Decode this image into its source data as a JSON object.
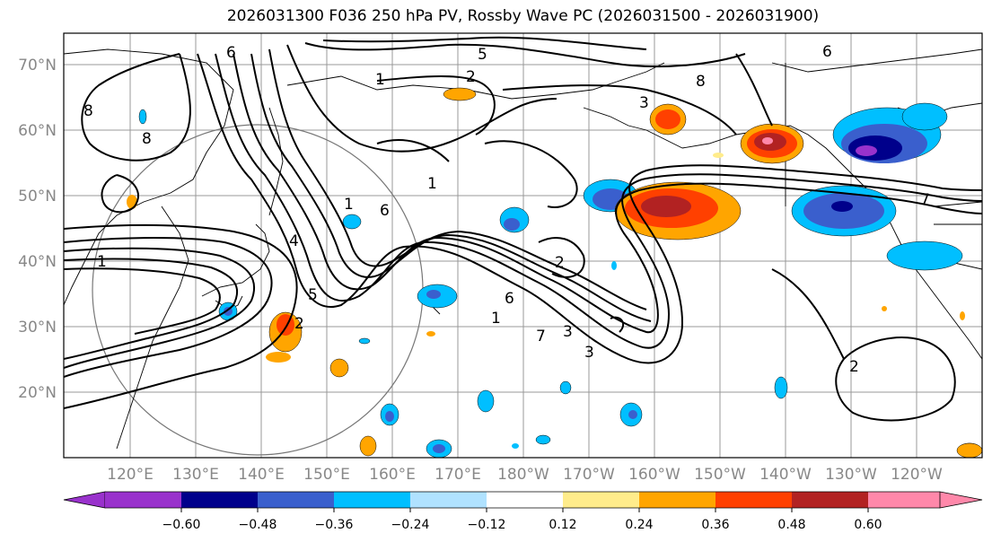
{
  "title": "2026031300 F036 250 hPa PV, Rossby Wave PC (2026031500 - 2026031900)",
  "lat_labels": [
    "70°N",
    "60°N",
    "50°N",
    "40°N",
    "30°N",
    "20°N"
  ],
  "lon_labels": [
    "120°E",
    "130°E",
    "140°E",
    "150°E",
    "160°E",
    "170°E",
    "180°W",
    "170°W",
    "160°W",
    "150°W",
    "140°W",
    "130°W",
    "120°W"
  ],
  "colorbar": {
    "ticks": [
      "−0.60",
      "−0.48",
      "−0.36",
      "−0.24",
      "−0.12",
      "0.12",
      "0.24",
      "0.36",
      "0.48",
      "0.60"
    ],
    "colors": [
      "#9932cc",
      "#00008b",
      "#3a5fcd",
      "#00bfff",
      "#b0e2ff",
      "#ffffff",
      "#ffec8b",
      "#ffa500",
      "#ff4000",
      "#b22222",
      "#ff88aa"
    ]
  },
  "contour_labels": [
    "1",
    "1",
    "1",
    "1",
    "2",
    "2",
    "2",
    "3",
    "3",
    "5",
    "5",
    "6",
    "6",
    "6",
    "6",
    "7",
    "8",
    "8",
    "1",
    "4",
    "3",
    "8",
    "2",
    "7"
  ]
}
